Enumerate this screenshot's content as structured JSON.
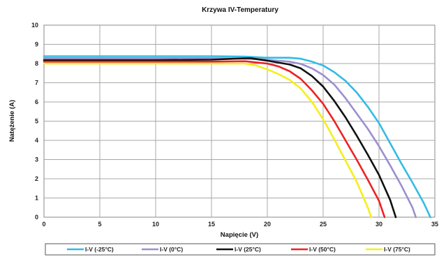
{
  "chart_data": {
    "type": "line",
    "title": "Krzywa IV-Temperatury",
    "xlabel": "Napięcie (V)",
    "ylabel": "Natężenie (A)",
    "xlim": [
      0,
      35
    ],
    "ylim": [
      0,
      10
    ],
    "xticks": [
      "0",
      "5",
      "10",
      "15",
      "20",
      "25",
      "30",
      "35"
    ],
    "yticks": [
      "0",
      "1",
      "2",
      "3",
      "4",
      "5",
      "6",
      "7",
      "8",
      "9",
      "10"
    ],
    "grid": true,
    "legend_position": "bottom",
    "series": [
      {
        "name": "I-V (-25°C)",
        "color": "#33bbe6",
        "points": [
          [
            0,
            8.38
          ],
          [
            10,
            8.38
          ],
          [
            15,
            8.38
          ],
          [
            18,
            8.36
          ],
          [
            20,
            8.3
          ],
          [
            22,
            8.3
          ],
          [
            23,
            8.25
          ],
          [
            24,
            8.1
          ],
          [
            25,
            7.9
          ],
          [
            26,
            7.55
          ],
          [
            27,
            7.1
          ],
          [
            28,
            6.5
          ],
          [
            29,
            5.75
          ],
          [
            30,
            4.9
          ],
          [
            31,
            3.85
          ],
          [
            32,
            2.8
          ],
          [
            33,
            1.8
          ],
          [
            34,
            0.75
          ],
          [
            34.6,
            0
          ]
        ]
      },
      {
        "name": "I-V (0°C)",
        "color": "#9b90d0",
        "points": [
          [
            0,
            8.28
          ],
          [
            10,
            8.28
          ],
          [
            15,
            8.28
          ],
          [
            18,
            8.26
          ],
          [
            20,
            8.2
          ],
          [
            22,
            8.1
          ],
          [
            23,
            7.98
          ],
          [
            24,
            7.75
          ],
          [
            25,
            7.4
          ],
          [
            26,
            6.9
          ],
          [
            27,
            6.2
          ],
          [
            28,
            5.4
          ],
          [
            29,
            4.6
          ],
          [
            30,
            3.7
          ],
          [
            31,
            2.7
          ],
          [
            32,
            1.65
          ],
          [
            33,
            0.5
          ],
          [
            33.3,
            0
          ]
        ]
      },
      {
        "name": "I-V (25°C)",
        "color": "#111111",
        "points": [
          [
            0,
            8.18
          ],
          [
            10,
            8.18
          ],
          [
            15,
            8.2
          ],
          [
            17,
            8.25
          ],
          [
            18.5,
            8.28
          ],
          [
            20,
            8.15
          ],
          [
            21,
            8.05
          ],
          [
            22,
            7.95
          ],
          [
            23,
            7.75
          ],
          [
            24,
            7.35
          ],
          [
            25,
            6.8
          ],
          [
            26,
            6.05
          ],
          [
            27,
            5.2
          ],
          [
            28,
            4.25
          ],
          [
            29,
            3.25
          ],
          [
            30,
            2.2
          ],
          [
            31,
            0.9
          ],
          [
            31.5,
            0
          ]
        ]
      },
      {
        "name": "I-V (50°C)",
        "color": "#ee2222",
        "points": [
          [
            0,
            8.1
          ],
          [
            10,
            8.1
          ],
          [
            15,
            8.1
          ],
          [
            18,
            8.12
          ],
          [
            20,
            8.0
          ],
          [
            21,
            7.85
          ],
          [
            22,
            7.6
          ],
          [
            23,
            7.2
          ],
          [
            24,
            6.6
          ],
          [
            25,
            5.9
          ],
          [
            26,
            5.0
          ],
          [
            27,
            4.0
          ],
          [
            28,
            3.0
          ],
          [
            29,
            1.95
          ],
          [
            30,
            0.85
          ],
          [
            30.5,
            0
          ]
        ]
      },
      {
        "name": "I-V (75°C)",
        "color": "#f5ef1a",
        "points": [
          [
            0,
            8.0
          ],
          [
            10,
            8.0
          ],
          [
            15,
            8.0
          ],
          [
            18,
            8.0
          ],
          [
            19,
            7.9
          ],
          [
            20,
            7.7
          ],
          [
            21,
            7.45
          ],
          [
            22,
            7.15
          ],
          [
            23,
            6.7
          ],
          [
            24,
            6.0
          ],
          [
            25,
            5.1
          ],
          [
            26,
            4.05
          ],
          [
            27,
            2.95
          ],
          [
            28,
            1.85
          ],
          [
            29,
            0.5
          ],
          [
            29.3,
            0
          ]
        ]
      }
    ]
  }
}
